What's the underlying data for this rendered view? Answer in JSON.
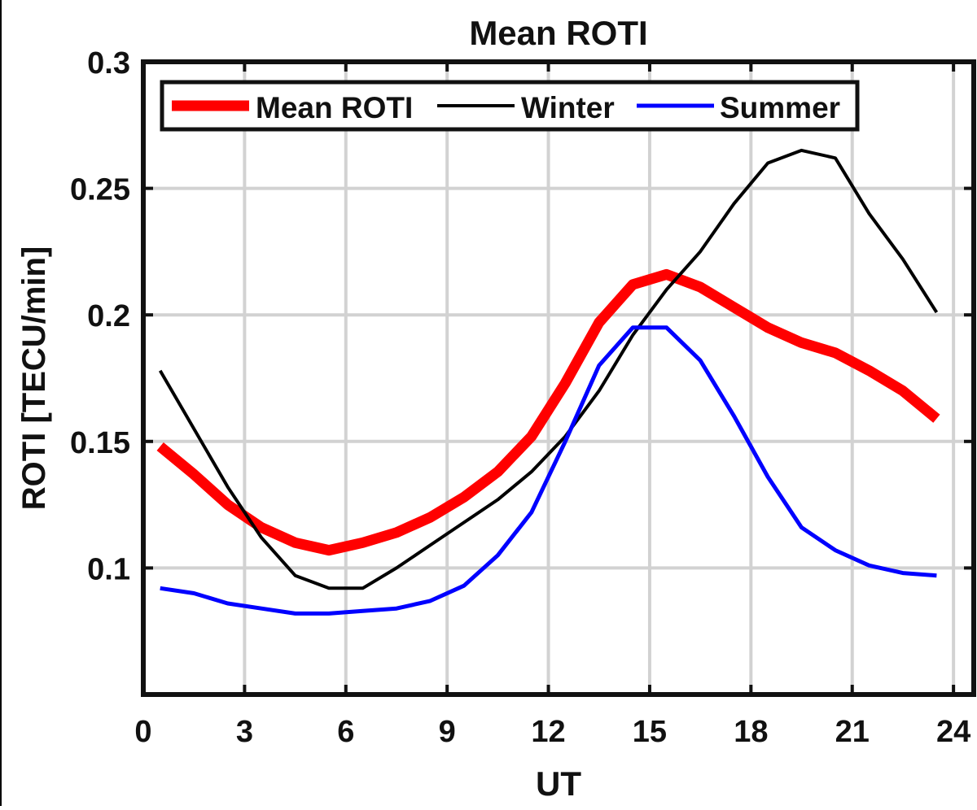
{
  "chart_data": {
    "type": "line",
    "title": "Mean ROTI",
    "xlabel": "UT",
    "ylabel": "ROTI [TECU/min]",
    "xlim": [
      0,
      24.6
    ],
    "ylim": [
      0.05,
      0.3
    ],
    "xticks": [
      0,
      3,
      6,
      9,
      12,
      15,
      18,
      21,
      24
    ],
    "xtick_labels": [
      "0",
      "3",
      "6",
      "9",
      "12",
      "15",
      "18",
      "21",
      "24"
    ],
    "yticks": [
      0.1,
      0.15,
      0.2,
      0.25,
      0.3
    ],
    "ytick_labels": [
      "0.1",
      "0.15",
      "0.2",
      "0.25",
      "0.3"
    ],
    "grid": true,
    "legend_position": "top-left, horizontal",
    "x": [
      0.5,
      1.5,
      2.5,
      3.5,
      4.5,
      5.5,
      6.5,
      7.5,
      8.5,
      9.5,
      10.5,
      11.5,
      12.5,
      13.5,
      14.5,
      15.5,
      16.5,
      17.5,
      18.5,
      19.5,
      20.5,
      21.5,
      22.5,
      23.5
    ],
    "series": [
      {
        "name": "Mean ROTI",
        "color": "#ff0000",
        "width": 13,
        "values": [
          0.148,
          0.137,
          0.125,
          0.116,
          0.11,
          0.107,
          0.11,
          0.114,
          0.12,
          0.128,
          0.138,
          0.152,
          0.173,
          0.197,
          0.212,
          0.216,
          0.211,
          0.203,
          0.195,
          0.189,
          0.185,
          0.178,
          0.17,
          0.159
        ]
      },
      {
        "name": "Winter",
        "color": "#000000",
        "width": 4,
        "values": [
          0.178,
          0.155,
          0.132,
          0.112,
          0.097,
          0.092,
          0.092,
          0.1,
          0.109,
          0.118,
          0.127,
          0.138,
          0.152,
          0.17,
          0.192,
          0.21,
          0.225,
          0.244,
          0.26,
          0.265,
          0.262,
          0.24,
          0.222,
          0.201
        ]
      },
      {
        "name": "Summer",
        "color": "#0000ff",
        "width": 5,
        "values": [
          0.092,
          0.09,
          0.086,
          0.084,
          0.082,
          0.082,
          0.083,
          0.084,
          0.087,
          0.093,
          0.105,
          0.122,
          0.15,
          0.18,
          0.195,
          0.195,
          0.182,
          0.16,
          0.136,
          0.116,
          0.107,
          0.101,
          0.098,
          0.097
        ]
      }
    ]
  }
}
